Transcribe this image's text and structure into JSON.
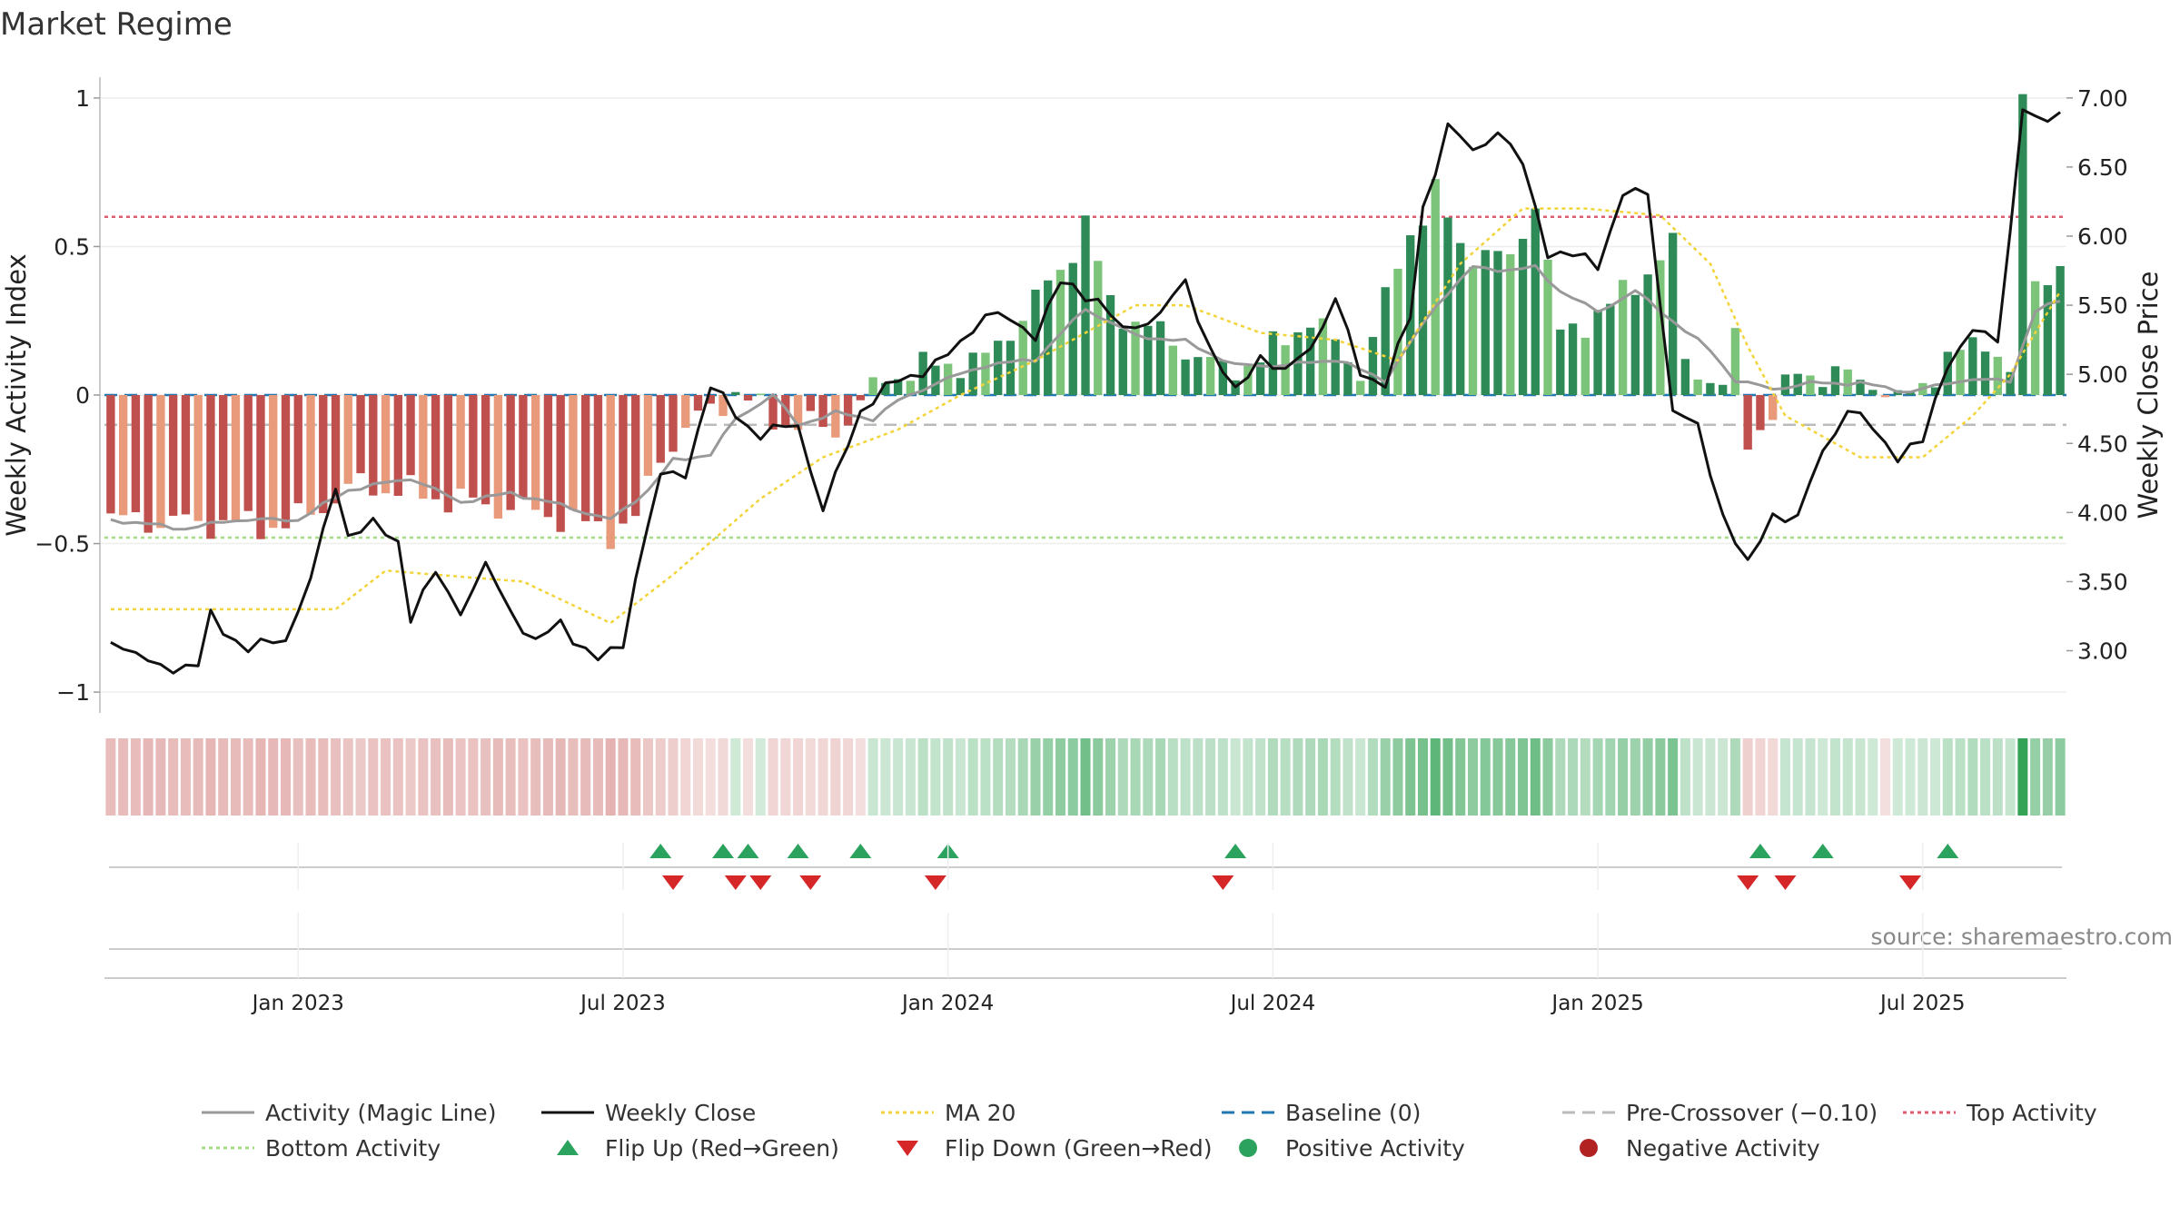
{
  "title": "Market Regime",
  "source": "source: sharemaestro.com",
  "colors": {
    "red_strong": "#c0504d",
    "red_light": "#e89a7a",
    "green_strong": "#2e8b57",
    "green_light": "#7cc47a",
    "close_line": "#111111",
    "magic_line": "#999999",
    "ma20": "#f2d43a",
    "top_line": "#e05a74",
    "bottom_line": "#a6dc87",
    "baseline": "#1f77b4",
    "precross": "#bbbbbb",
    "flip_up": "#2ca25f",
    "flip_down": "#d62728"
  },
  "chart_data": {
    "type": "bar",
    "title": "Market Regime",
    "weeks": 157,
    "x_ticks": [
      "Jan 2023",
      "Jul 2023",
      "Jan 2024",
      "Jul 2024",
      "Jan 2025",
      "Jul 2025"
    ],
    "x_tick_weeks": [
      15,
      41,
      67,
      93,
      119,
      145
    ],
    "y_left": {
      "label": "Weekly Activity Index",
      "ylim": [
        -1.07,
        1.07
      ],
      "ticks": [
        -1,
        -0.5,
        0,
        0.5,
        1
      ],
      "tick_labels": [
        "−1",
        "−0.5",
        "0",
        "0.5",
        "1"
      ]
    },
    "y_right": {
      "label": "Weekly Close Price",
      "ylim": [
        2.55,
        7.15
      ],
      "ticks": [
        3.0,
        3.5,
        4.0,
        4.5,
        5.0,
        5.5,
        6.0,
        6.5,
        7.0
      ],
      "tick_labels": [
        "3.00",
        "3.50",
        "4.00",
        "4.50",
        "5.00",
        "5.50",
        "6.00",
        "6.50",
        "7.00"
      ]
    },
    "reference_lines": {
      "top_activity": 0.6,
      "bottom_activity": -0.48,
      "baseline": 0,
      "pre_crossover": -0.1
    },
    "activity_keys": [
      {
        "w": 0,
        "v": -0.42
      },
      {
        "w": 14,
        "v": -0.44
      },
      {
        "w": 20,
        "v": -0.3
      },
      {
        "w": 27,
        "v": -0.35
      },
      {
        "w": 35,
        "v": -0.4
      },
      {
        "w": 40,
        "v": -0.46
      },
      {
        "w": 42,
        "v": -0.42
      },
      {
        "w": 44,
        "v": -0.2
      },
      {
        "w": 47,
        "v": -0.08
      },
      {
        "w": 50,
        "v": 0.01
      },
      {
        "w": 53,
        "v": -0.08
      },
      {
        "w": 58,
        "v": -0.12
      },
      {
        "w": 62,
        "v": 0.06
      },
      {
        "w": 66,
        "v": 0.1
      },
      {
        "w": 70,
        "v": 0.12
      },
      {
        "w": 76,
        "v": 0.42
      },
      {
        "w": 78,
        "v": 0.58
      },
      {
        "w": 80,
        "v": 0.3
      },
      {
        "w": 85,
        "v": 0.18
      },
      {
        "w": 89,
        "v": 0.08
      },
      {
        "w": 92,
        "v": 0.12
      },
      {
        "w": 96,
        "v": 0.26
      },
      {
        "w": 100,
        "v": 0.08
      },
      {
        "w": 104,
        "v": 0.55
      },
      {
        "w": 106,
        "v": 0.68
      },
      {
        "w": 108,
        "v": 0.5
      },
      {
        "w": 112,
        "v": 0.45
      },
      {
        "w": 114,
        "v": 0.66
      },
      {
        "w": 116,
        "v": 0.2
      },
      {
        "w": 120,
        "v": 0.3
      },
      {
        "w": 123,
        "v": 0.42
      },
      {
        "w": 125,
        "v": 0.5
      },
      {
        "w": 126,
        "v": 0.12
      },
      {
        "w": 129,
        "v": 0.02
      },
      {
        "w": 130,
        "v": 0.18
      },
      {
        "w": 131,
        "v": -0.15
      },
      {
        "w": 133,
        "v": -0.06
      },
      {
        "w": 135,
        "v": 0.08
      },
      {
        "w": 141,
        "v": 0.05
      },
      {
        "w": 143,
        "v": -0.03
      },
      {
        "w": 146,
        "v": 0.08
      },
      {
        "w": 150,
        "v": 0.2
      },
      {
        "w": 152,
        "v": 0.06
      },
      {
        "w": 153,
        "v": 0.98
      },
      {
        "w": 154,
        "v": 0.4
      },
      {
        "w": 156,
        "v": 0.42
      }
    ],
    "close_keys": [
      {
        "w": 0,
        "v": 3.1
      },
      {
        "w": 3,
        "v": 2.9
      },
      {
        "w": 7,
        "v": 2.88
      },
      {
        "w": 8,
        "v": 3.25
      },
      {
        "w": 11,
        "v": 3.0
      },
      {
        "w": 14,
        "v": 3.1
      },
      {
        "w": 16,
        "v": 3.5
      },
      {
        "w": 18,
        "v": 4.2
      },
      {
        "w": 19,
        "v": 3.85
      },
      {
        "w": 21,
        "v": 3.9
      },
      {
        "w": 23,
        "v": 3.8
      },
      {
        "w": 24,
        "v": 3.25
      },
      {
        "w": 26,
        "v": 3.55
      },
      {
        "w": 28,
        "v": 3.3
      },
      {
        "w": 30,
        "v": 3.6
      },
      {
        "w": 32,
        "v": 3.3
      },
      {
        "w": 34,
        "v": 3.05
      },
      {
        "w": 36,
        "v": 3.2
      },
      {
        "w": 39,
        "v": 2.92
      },
      {
        "w": 41,
        "v": 3.05
      },
      {
        "w": 42,
        "v": 3.55
      },
      {
        "w": 44,
        "v": 4.25
      },
      {
        "w": 46,
        "v": 4.3
      },
      {
        "w": 48,
        "v": 4.9
      },
      {
        "w": 52,
        "v": 4.55
      },
      {
        "w": 55,
        "v": 4.65
      },
      {
        "w": 57,
        "v": 4.0
      },
      {
        "w": 60,
        "v": 4.75
      },
      {
        "w": 63,
        "v": 4.95
      },
      {
        "w": 67,
        "v": 5.12
      },
      {
        "w": 70,
        "v": 5.45
      },
      {
        "w": 74,
        "v": 5.3
      },
      {
        "w": 76,
        "v": 5.65
      },
      {
        "w": 79,
        "v": 5.55
      },
      {
        "w": 81,
        "v": 5.3
      },
      {
        "w": 84,
        "v": 5.45
      },
      {
        "w": 86,
        "v": 5.65
      },
      {
        "w": 88,
        "v": 5.2
      },
      {
        "w": 90,
        "v": 4.85
      },
      {
        "w": 92,
        "v": 5.15
      },
      {
        "w": 94,
        "v": 5.0
      },
      {
        "w": 96,
        "v": 5.2
      },
      {
        "w": 98,
        "v": 5.55
      },
      {
        "w": 100,
        "v": 5.0
      },
      {
        "w": 102,
        "v": 4.95
      },
      {
        "w": 104,
        "v": 5.4
      },
      {
        "w": 105,
        "v": 6.2
      },
      {
        "w": 107,
        "v": 6.8
      },
      {
        "w": 109,
        "v": 6.6
      },
      {
        "w": 111,
        "v": 6.78
      },
      {
        "w": 113,
        "v": 6.5
      },
      {
        "w": 115,
        "v": 5.9
      },
      {
        "w": 117,
        "v": 5.85
      },
      {
        "w": 119,
        "v": 5.8
      },
      {
        "w": 121,
        "v": 6.3
      },
      {
        "w": 123,
        "v": 6.3
      },
      {
        "w": 125,
        "v": 4.75
      },
      {
        "w": 127,
        "v": 4.6
      },
      {
        "w": 129,
        "v": 4.0
      },
      {
        "w": 131,
        "v": 3.6
      },
      {
        "w": 133,
        "v": 4.0
      },
      {
        "w": 135,
        "v": 3.95
      },
      {
        "w": 137,
        "v": 4.45
      },
      {
        "w": 139,
        "v": 4.75
      },
      {
        "w": 141,
        "v": 4.6
      },
      {
        "w": 143,
        "v": 4.42
      },
      {
        "w": 145,
        "v": 4.5
      },
      {
        "w": 147,
        "v": 5.1
      },
      {
        "w": 149,
        "v": 5.3
      },
      {
        "w": 151,
        "v": 5.25
      },
      {
        "w": 153,
        "v": 6.9
      },
      {
        "w": 155,
        "v": 6.8
      },
      {
        "w": 156,
        "v": 6.95
      }
    ],
    "ma20_keys": [
      {
        "w": 0,
        "v": 3.3
      },
      {
        "w": 18,
        "v": 3.3
      },
      {
        "w": 22,
        "v": 3.58
      },
      {
        "w": 26,
        "v": 3.55
      },
      {
        "w": 33,
        "v": 3.5
      },
      {
        "w": 40,
        "v": 3.2
      },
      {
        "w": 45,
        "v": 3.55
      },
      {
        "w": 52,
        "v": 4.1
      },
      {
        "w": 57,
        "v": 4.4
      },
      {
        "w": 63,
        "v": 4.6
      },
      {
        "w": 68,
        "v": 4.85
      },
      {
        "w": 74,
        "v": 5.1
      },
      {
        "w": 82,
        "v": 5.5
      },
      {
        "w": 86,
        "v": 5.5
      },
      {
        "w": 92,
        "v": 5.3
      },
      {
        "w": 98,
        "v": 5.25
      },
      {
        "w": 103,
        "v": 5.1
      },
      {
        "w": 108,
        "v": 5.8
      },
      {
        "w": 113,
        "v": 6.2
      },
      {
        "w": 118,
        "v": 6.2
      },
      {
        "w": 124,
        "v": 6.15
      },
      {
        "w": 128,
        "v": 5.8
      },
      {
        "w": 131,
        "v": 5.2
      },
      {
        "w": 134,
        "v": 4.7
      },
      {
        "w": 140,
        "v": 4.4
      },
      {
        "w": 145,
        "v": 4.4
      },
      {
        "w": 149,
        "v": 4.7
      },
      {
        "w": 152,
        "v": 5.0
      },
      {
        "w": 156,
        "v": 5.6
      }
    ],
    "magic_keys": [
      {
        "w": 0,
        "v": -0.42
      },
      {
        "w": 6,
        "v": -0.45
      },
      {
        "w": 10,
        "v": -0.42
      },
      {
        "w": 15,
        "v": -0.42
      },
      {
        "w": 19,
        "v": -0.32
      },
      {
        "w": 24,
        "v": -0.28
      },
      {
        "w": 28,
        "v": -0.36
      },
      {
        "w": 32,
        "v": -0.33
      },
      {
        "w": 36,
        "v": -0.37
      },
      {
        "w": 40,
        "v": -0.42
      },
      {
        "w": 43,
        "v": -0.32
      },
      {
        "w": 45,
        "v": -0.22
      },
      {
        "w": 48,
        "v": -0.2
      },
      {
        "w": 50,
        "v": -0.08
      },
      {
        "w": 53,
        "v": 0.0
      },
      {
        "w": 55,
        "v": -0.1
      },
      {
        "w": 58,
        "v": -0.06
      },
      {
        "w": 61,
        "v": -0.08
      },
      {
        "w": 63,
        "v": -0.02
      },
      {
        "w": 66,
        "v": 0.04
      },
      {
        "w": 70,
        "v": 0.1
      },
      {
        "w": 74,
        "v": 0.12
      },
      {
        "w": 78,
        "v": 0.29
      },
      {
        "w": 82,
        "v": 0.2
      },
      {
        "w": 86,
        "v": 0.18
      },
      {
        "w": 90,
        "v": 0.1
      },
      {
        "w": 94,
        "v": 0.1
      },
      {
        "w": 98,
        "v": 0.12
      },
      {
        "w": 102,
        "v": 0.05
      },
      {
        "w": 106,
        "v": 0.3
      },
      {
        "w": 109,
        "v": 0.43
      },
      {
        "w": 112,
        "v": 0.42
      },
      {
        "w": 114,
        "v": 0.43
      },
      {
        "w": 116,
        "v": 0.35
      },
      {
        "w": 119,
        "v": 0.28
      },
      {
        "w": 122,
        "v": 0.35
      },
      {
        "w": 125,
        "v": 0.25
      },
      {
        "w": 128,
        "v": 0.15
      },
      {
        "w": 130,
        "v": 0.05
      },
      {
        "w": 133,
        "v": 0.02
      },
      {
        "w": 136,
        "v": 0.04
      },
      {
        "w": 140,
        "v": 0.04
      },
      {
        "w": 144,
        "v": 0.01
      },
      {
        "w": 148,
        "v": 0.05
      },
      {
        "w": 152,
        "v": 0.05
      },
      {
        "w": 154,
        "v": 0.28
      },
      {
        "w": 156,
        "v": 0.32
      }
    ],
    "flip_up_weeks": [
      44,
      49,
      51,
      55,
      60,
      67,
      90,
      132,
      137,
      147
    ],
    "flip_down_weeks": [
      45,
      50,
      52,
      56,
      66,
      89,
      131,
      134,
      144
    ]
  },
  "legend": [
    {
      "label": "Activity (Magic Line)",
      "kind": "line",
      "color": "#999999",
      "dash": ""
    },
    {
      "label": "Weekly Close",
      "kind": "line",
      "color": "#111111",
      "dash": ""
    },
    {
      "label": "MA 20",
      "kind": "line",
      "color": "#f2d43a",
      "dash": "4,4"
    },
    {
      "label": "Baseline (0)",
      "kind": "line",
      "color": "#1f77b4",
      "dash": "14,8"
    },
    {
      "label": "Pre-Crossover (−0.10)",
      "kind": "line",
      "color": "#bbbbbb",
      "dash": "14,8"
    },
    {
      "label": "Top Activity",
      "kind": "line",
      "color": "#e05a74",
      "dash": "4,4"
    },
    {
      "label": "Bottom Activity",
      "kind": "line",
      "color": "#a6dc87",
      "dash": "4,4"
    },
    {
      "label": "Flip Up (Red→Green)",
      "kind": "tri-up",
      "color": "#2ca25f",
      "dash": ""
    },
    {
      "label": "Flip Down (Green→Red)",
      "kind": "tri-down",
      "color": "#d62728",
      "dash": ""
    },
    {
      "label": "Positive Activity",
      "kind": "dot",
      "color": "#2ca25f",
      "dash": ""
    },
    {
      "label": "Negative Activity",
      "kind": "dot",
      "color": "#b22222",
      "dash": ""
    }
  ]
}
